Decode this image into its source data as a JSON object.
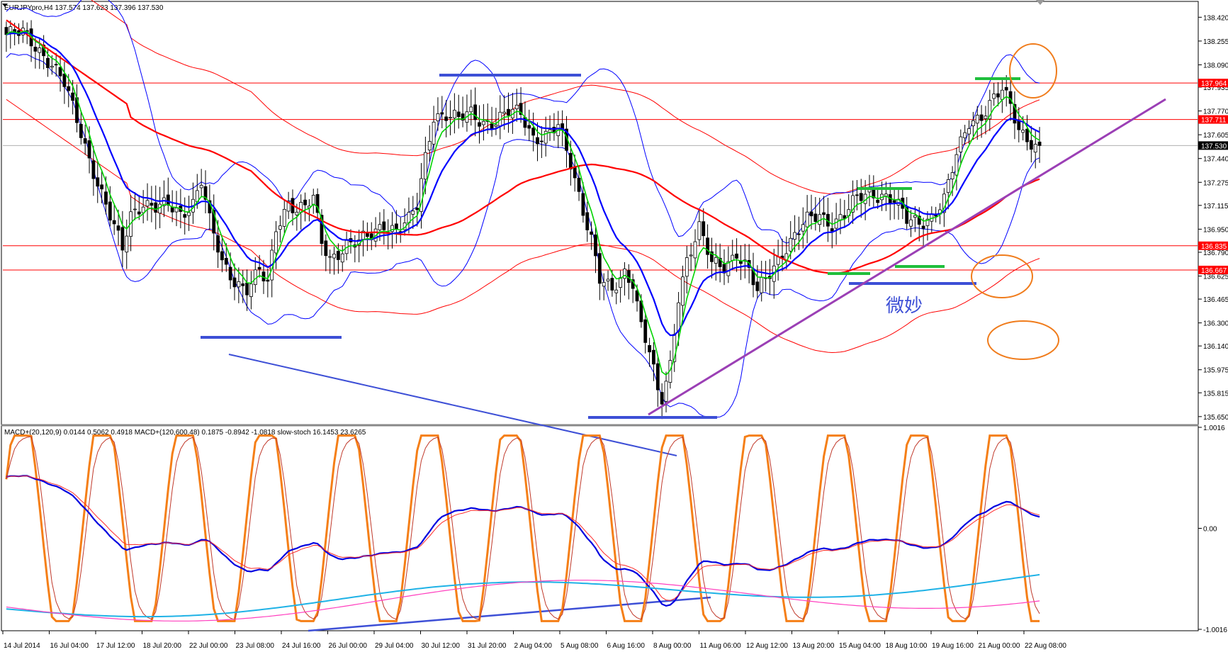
{
  "window": {
    "header": "EURJPYpro,H4  137.574 137.623 137.396 137.530"
  },
  "indicator_header": "MACD+(20,120,9) 0.0144 0.5062 0.4918  MACD+(120,600,48) 0.1875 -0.8942 -1.0818  slow-stoch 16.1453 23.6265",
  "annotation": "微妙",
  "colors": {
    "bull_candle": "#ffffff",
    "bear_candle": "#000000",
    "ma_fast": "#00d400",
    "ma_mid": "#0000ff",
    "ma_slow": "#ff0000",
    "bollinger": "#0000ff",
    "envelope": "#ff0000",
    "trend_purple": "#9b3fb5",
    "support_blue": "#3d4fd6",
    "mark_green": "#1fbf3c",
    "circle_orange": "#f07c1c",
    "stoch_orange": "#f57f17",
    "macd_blue": "#0000e0",
    "macd_red": "#ff2a2a",
    "macd_cyan": "#1fb2e6",
    "macd_magenta": "#ff3fbf"
  },
  "chart_data": [
    {
      "type": "candlestick",
      "title": "EURJPYpro,H4",
      "ylim": [
        135.6,
        138.52
      ],
      "y_ticks": [
        "138.420",
        "138.255",
        "138.090",
        "137.935",
        "137.770",
        "137.605",
        "137.440",
        "137.275",
        "137.115",
        "136.950",
        "136.790",
        "136.625",
        "136.465",
        "136.300",
        "136.140",
        "135.975",
        "135.815",
        "135.650"
      ],
      "price_labels": [
        {
          "value": 137.964,
          "label": "137.964",
          "bg": "#ff0000"
        },
        {
          "value": 137.711,
          "label": "137.711",
          "bg": "#ff0000"
        },
        {
          "value": 137.53,
          "label": "137.530",
          "bg": "#000000"
        },
        {
          "value": 136.835,
          "label": "136.835",
          "bg": "#ff0000"
        },
        {
          "value": 136.667,
          "label": "136.667",
          "bg": "#ff0000"
        }
      ],
      "horizontal_lines": [
        137.964,
        137.711,
        136.835,
        136.667
      ],
      "current_price_line": 137.53,
      "x_labels": [
        "14 Jul 2014",
        "16 Jul 04:00",
        "17 Jul 12:00",
        "18 Jul 20:00",
        "22 Jul 00:00",
        "23 Jul 08:00",
        "24 Jul 16:00",
        "26 Jul 00:00",
        "29 Jul 04:00",
        "30 Jul 12:00",
        "31 Jul 20:00",
        "2 Aug 04:00",
        "5 Aug 08:00",
        "6 Aug 16:00",
        "8 Aug 00:00",
        "11 Aug 06:00",
        "12 Aug 12:00",
        "13 Aug 20:00",
        "15 Aug 04:00",
        "18 Aug 10:00",
        "19 Aug 16:00",
        "21 Aug 00:00",
        "22 Aug 08:00"
      ],
      "candle_path": [
        [
          0,
          138.3
        ],
        [
          4,
          138.3
        ],
        [
          8,
          138.2
        ],
        [
          11,
          138.1
        ],
        [
          14,
          137.95
        ],
        [
          17,
          137.7
        ],
        [
          20,
          137.45
        ],
        [
          23,
          137.2
        ],
        [
          26,
          136.95
        ],
        [
          28,
          136.8
        ],
        [
          30,
          137.05
        ],
        [
          33,
          137.15
        ],
        [
          36,
          137.1
        ],
        [
          39,
          137.1
        ],
        [
          42,
          137.05
        ],
        [
          45,
          137.15
        ],
        [
          47,
          137.3
        ],
        [
          49,
          137.0
        ],
        [
          52,
          136.7
        ],
        [
          55,
          136.6
        ],
        [
          58,
          136.55
        ],
        [
          61,
          136.65
        ],
        [
          63,
          136.55
        ],
        [
          65,
          136.95
        ],
        [
          68,
          137.15
        ],
        [
          70,
          137.1
        ],
        [
          72,
          137.1
        ],
        [
          74,
          137.15
        ],
        [
          76,
          136.85
        ],
        [
          78,
          136.75
        ],
        [
          80,
          136.8
        ],
        [
          82,
          136.85
        ],
        [
          85,
          136.85
        ],
        [
          88,
          136.9
        ],
        [
          91,
          137.0
        ],
        [
          94,
          136.95
        ],
        [
          97,
          137.0
        ],
        [
          99,
          137.1
        ],
        [
          101,
          137.45
        ],
        [
          103,
          137.75
        ],
        [
          106,
          137.75
        ],
        [
          109,
          137.7
        ],
        [
          112,
          137.75
        ],
        [
          115,
          137.7
        ],
        [
          118,
          137.7
        ],
        [
          121,
          137.75
        ],
        [
          124,
          137.75
        ],
        [
          127,
          137.6
        ],
        [
          130,
          137.6
        ],
        [
          133,
          137.65
        ],
        [
          136,
          137.4
        ],
        [
          139,
          137.1
        ],
        [
          141,
          136.9
        ],
        [
          143,
          136.6
        ],
        [
          146,
          136.5
        ],
        [
          149,
          136.65
        ],
        [
          151,
          136.6
        ],
        [
          153,
          136.3
        ],
        [
          155,
          136.1
        ],
        [
          157,
          135.8
        ],
        [
          158,
          135.75
        ],
        [
          160,
          136.0
        ],
        [
          162,
          136.5
        ],
        [
          164,
          136.75
        ],
        [
          167,
          136.95
        ],
        [
          170,
          136.7
        ],
        [
          173,
          136.7
        ],
        [
          176,
          136.8
        ],
        [
          179,
          136.65
        ],
        [
          181,
          136.5
        ],
        [
          184,
          136.65
        ],
        [
          187,
          136.8
        ],
        [
          190,
          136.9
        ],
        [
          193,
          137.0
        ],
        [
          196,
          137.05
        ],
        [
          199,
          137.0
        ],
        [
          202,
          137.05
        ],
        [
          205,
          137.15
        ],
        [
          208,
          137.2
        ],
        [
          211,
          137.2
        ],
        [
          214,
          137.15
        ],
        [
          217,
          137.0
        ],
        [
          220,
          137.0
        ],
        [
          223,
          137.05
        ],
        [
          226,
          137.15
        ],
        [
          229,
          137.45
        ],
        [
          232,
          137.7
        ],
        [
          235,
          137.75
        ],
        [
          238,
          137.85
        ],
        [
          240,
          137.9
        ],
        [
          242,
          137.8
        ],
        [
          244,
          137.65
        ],
        [
          246,
          137.6
        ],
        [
          248,
          137.53
        ]
      ]
    },
    {
      "type": "line",
      "title": "MACD+ / slow-stoch",
      "ylim": [
        -1.0016,
        1.0016
      ],
      "y_ticks": [
        "1.0016",
        "0.00",
        "-1.0016"
      ]
    }
  ]
}
